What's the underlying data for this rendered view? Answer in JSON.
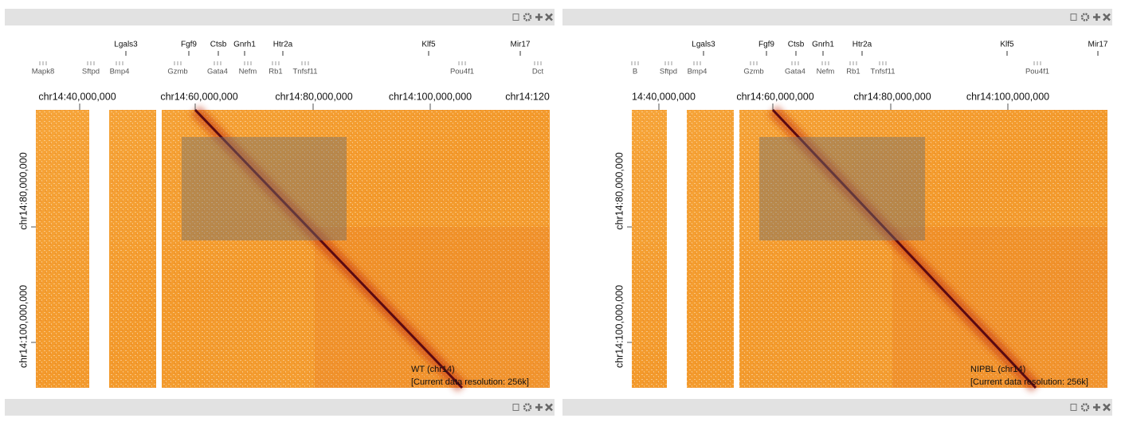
{
  "panels": [
    {
      "genes_top": [
        "Lgals3",
        "Fgf9",
        "Ctsb",
        "Gnrh1",
        "Htr2a",
        "Klf5",
        "Mir17"
      ],
      "genes_bottom": [
        "Mapk8",
        "Sftpd",
        "Bmp4",
        "Gzmb",
        "Gata4",
        "Nefm",
        "Rb1",
        "Tnfsf11",
        "Pou4f1",
        "Dct"
      ],
      "x_axis": [
        "chr14:40,000,000",
        "chr14:60,000,000",
        "chr14:80,000,000",
        "chr14:100,000,000",
        "chr14:120"
      ],
      "y_axis": [
        "chr14:80,000,000",
        "chr14:100,000,000"
      ],
      "label": "WT (chr14)",
      "resolution": "[Current data resolution: 256k]"
    },
    {
      "genes_top": [
        "Lgals3",
        "Fgf9",
        "Ctsb",
        "Gnrh1",
        "Htr2a",
        "Klf5",
        "Mir17"
      ],
      "genes_bottom": [
        "B",
        "Sftpd",
        "Bmp4",
        "Gzmb",
        "Gata4",
        "Nefm",
        "Rb1",
        "Tnfsf11",
        "Pou4f1"
      ],
      "x_axis": [
        "14:40,000,000",
        "chr14:60,000,000",
        "chr14:80,000,000",
        "chr14:100,000,000"
      ],
      "y_axis": [
        "chr14:80,000,000",
        "chr14:100,000,000"
      ],
      "label": "NIPBL (chr14)",
      "resolution": "[Current data resolution: 256k]"
    }
  ]
}
